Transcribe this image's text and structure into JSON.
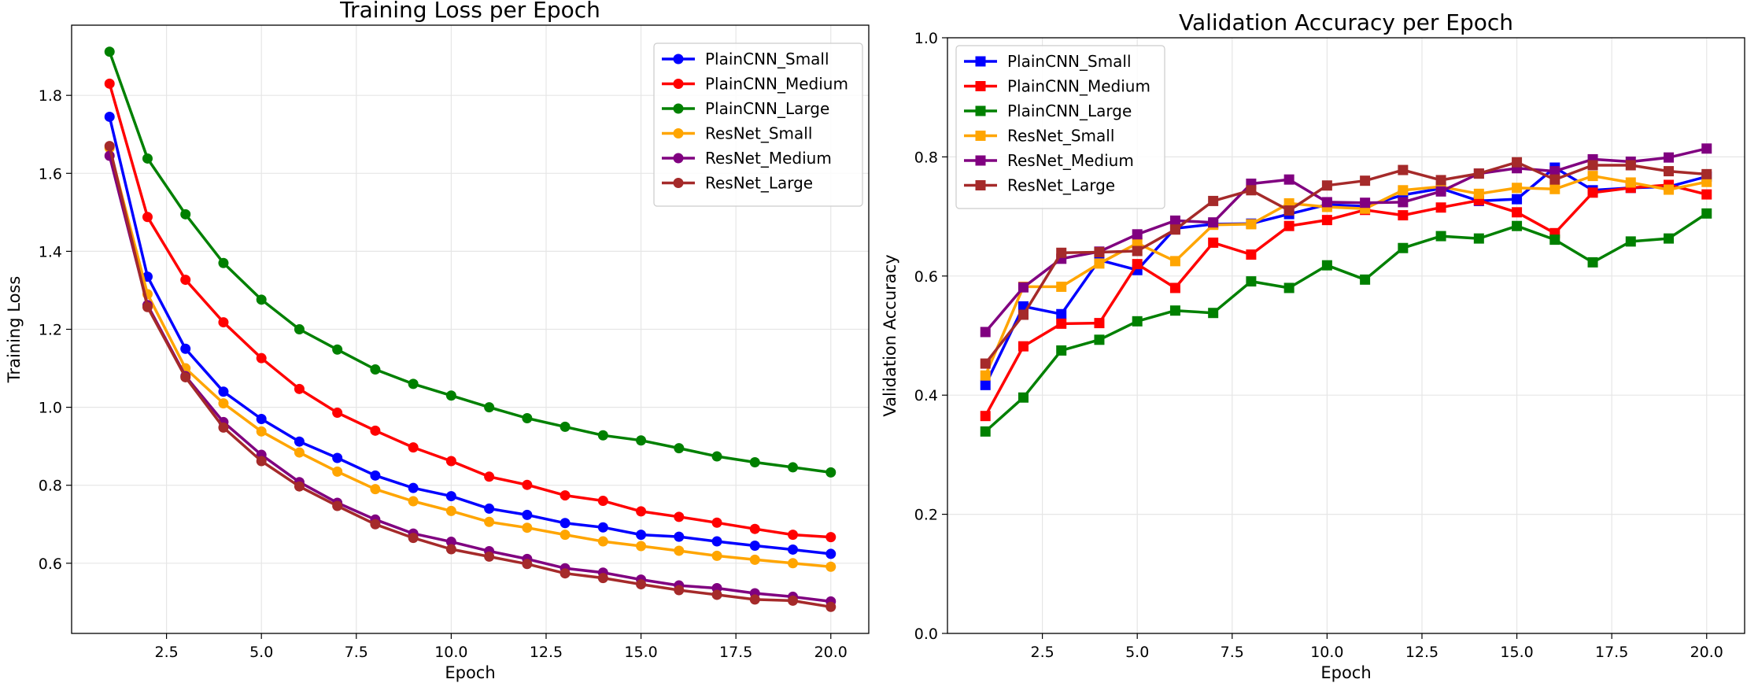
{
  "chart_data": [
    {
      "type": "line",
      "title": "Training Loss per Epoch",
      "xlabel": "Epoch",
      "ylabel": "Training Loss",
      "xlim": [
        0,
        21
      ],
      "ylim": [
        0.42,
        1.98
      ],
      "xticks": [
        2.5,
        5,
        7.5,
        10,
        12.5,
        15,
        17.5,
        20
      ],
      "xtick_labels": [
        "2.5",
        "5.0",
        "7.5",
        "10.0",
        "12.5",
        "15.0",
        "17.5",
        "20.0"
      ],
      "yticks": [
        0.6,
        0.8,
        1.0,
        1.2,
        1.4,
        1.6,
        1.8
      ],
      "ytick_labels": [
        "0.6",
        "0.8",
        "1.0",
        "1.2",
        "1.4",
        "1.6",
        "1.8"
      ],
      "grid": true,
      "legend_position": "top-right",
      "marker": "circle",
      "x": [
        1,
        2,
        3,
        4,
        5,
        6,
        7,
        8,
        9,
        10,
        11,
        12,
        13,
        14,
        15,
        16,
        17,
        18,
        19,
        20
      ],
      "series": [
        {
          "name": "PlainCNN_Small",
          "color": "#0000ff",
          "values": [
            1.745,
            1.335,
            1.15,
            1.04,
            0.97,
            0.912,
            0.87,
            0.825,
            0.793,
            0.772,
            0.74,
            0.724,
            0.703,
            0.692,
            0.673,
            0.668,
            0.656,
            0.645,
            0.635,
            0.624
          ]
        },
        {
          "name": "PlainCNN_Medium",
          "color": "#ff0000",
          "values": [
            1.83,
            1.488,
            1.327,
            1.218,
            1.126,
            1.047,
            0.986,
            0.94,
            0.897,
            0.862,
            0.822,
            0.801,
            0.774,
            0.76,
            0.733,
            0.719,
            0.704,
            0.688,
            0.673,
            0.667
          ]
        },
        {
          "name": "PlainCNN_Large",
          "color": "#008000",
          "values": [
            1.912,
            1.638,
            1.495,
            1.37,
            1.276,
            1.2,
            1.148,
            1.097,
            1.06,
            1.03,
            1.0,
            0.972,
            0.95,
            0.928,
            0.915,
            0.895,
            0.874,
            0.859,
            0.846,
            0.833
          ]
        },
        {
          "name": "ResNet_Small",
          "color": "#ffa500",
          "values": [
            1.665,
            1.29,
            1.1,
            1.01,
            0.938,
            0.884,
            0.835,
            0.79,
            0.759,
            0.734,
            0.706,
            0.691,
            0.673,
            0.656,
            0.644,
            0.632,
            0.619,
            0.609,
            0.6,
            0.591
          ]
        },
        {
          "name": "ResNet_Medium",
          "color": "#800080",
          "values": [
            1.645,
            1.262,
            1.08,
            0.962,
            0.878,
            0.808,
            0.755,
            0.712,
            0.676,
            0.655,
            0.631,
            0.611,
            0.587,
            0.576,
            0.558,
            0.543,
            0.536,
            0.523,
            0.514,
            0.502
          ]
        },
        {
          "name": "ResNet_Large",
          "color": "#a52a2a",
          "values": [
            1.67,
            1.257,
            1.077,
            0.948,
            0.862,
            0.797,
            0.747,
            0.7,
            0.665,
            0.636,
            0.617,
            0.598,
            0.574,
            0.562,
            0.546,
            0.531,
            0.519,
            0.507,
            0.504,
            0.488
          ]
        }
      ]
    },
    {
      "type": "line",
      "title": "Validation Accuracy per Epoch",
      "xlabel": "Epoch",
      "ylabel": "Validation Accuracy",
      "xlim": [
        0,
        21
      ],
      "ylim": [
        0.0,
        1.0
      ],
      "xticks": [
        2.5,
        5,
        7.5,
        10,
        12.5,
        15,
        17.5,
        20
      ],
      "xtick_labels": [
        "2.5",
        "5.0",
        "7.5",
        "10.0",
        "12.5",
        "15.0",
        "17.5",
        "20.0"
      ],
      "yticks": [
        0.0,
        0.2,
        0.4,
        0.6,
        0.8,
        1.0
      ],
      "ytick_labels": [
        "0.0",
        "0.2",
        "0.4",
        "0.6",
        "0.8",
        "1.0"
      ],
      "grid": true,
      "legend_position": "top-left",
      "marker": "square",
      "x": [
        1,
        2,
        3,
        4,
        5,
        6,
        7,
        8,
        9,
        10,
        11,
        12,
        13,
        14,
        15,
        16,
        17,
        18,
        19,
        20
      ],
      "series": [
        {
          "name": "PlainCNN_Small",
          "color": "#0000ff",
          "values": [
            0.417,
            0.549,
            0.536,
            0.627,
            0.61,
            0.68,
            0.687,
            0.688,
            0.704,
            0.72,
            0.717,
            0.736,
            0.747,
            0.726,
            0.729,
            0.782,
            0.744,
            0.748,
            0.75,
            0.767
          ]
        },
        {
          "name": "PlainCNN_Medium",
          "color": "#ff0000",
          "values": [
            0.365,
            0.482,
            0.52,
            0.521,
            0.62,
            0.58,
            0.656,
            0.636,
            0.684,
            0.694,
            0.711,
            0.702,
            0.715,
            0.727,
            0.707,
            0.672,
            0.74,
            0.748,
            0.753,
            0.737
          ]
        },
        {
          "name": "PlainCNN_Large",
          "color": "#008000",
          "values": [
            0.339,
            0.396,
            0.475,
            0.493,
            0.524,
            0.542,
            0.538,
            0.591,
            0.58,
            0.618,
            0.594,
            0.647,
            0.667,
            0.663,
            0.684,
            0.661,
            0.623,
            0.658,
            0.663,
            0.705
          ]
        },
        {
          "name": "ResNet_Small",
          "color": "#ffa500",
          "values": [
            0.433,
            0.582,
            0.582,
            0.621,
            0.655,
            0.625,
            0.686,
            0.687,
            0.722,
            0.716,
            0.713,
            0.744,
            0.75,
            0.738,
            0.748,
            0.746,
            0.768,
            0.757,
            0.745,
            0.758
          ]
        },
        {
          "name": "ResNet_Medium",
          "color": "#800080",
          "values": [
            0.506,
            0.581,
            0.629,
            0.641,
            0.67,
            0.693,
            0.69,
            0.755,
            0.762,
            0.724,
            0.723,
            0.724,
            0.742,
            0.772,
            0.781,
            0.776,
            0.796,
            0.792,
            0.799,
            0.814
          ]
        },
        {
          "name": "ResNet_Large",
          "color": "#a52a2a",
          "values": [
            0.453,
            0.535,
            0.639,
            0.64,
            0.642,
            0.678,
            0.726,
            0.744,
            0.71,
            0.752,
            0.76,
            0.778,
            0.761,
            0.772,
            0.791,
            0.762,
            0.786,
            0.786,
            0.776,
            0.771
          ]
        }
      ]
    }
  ]
}
